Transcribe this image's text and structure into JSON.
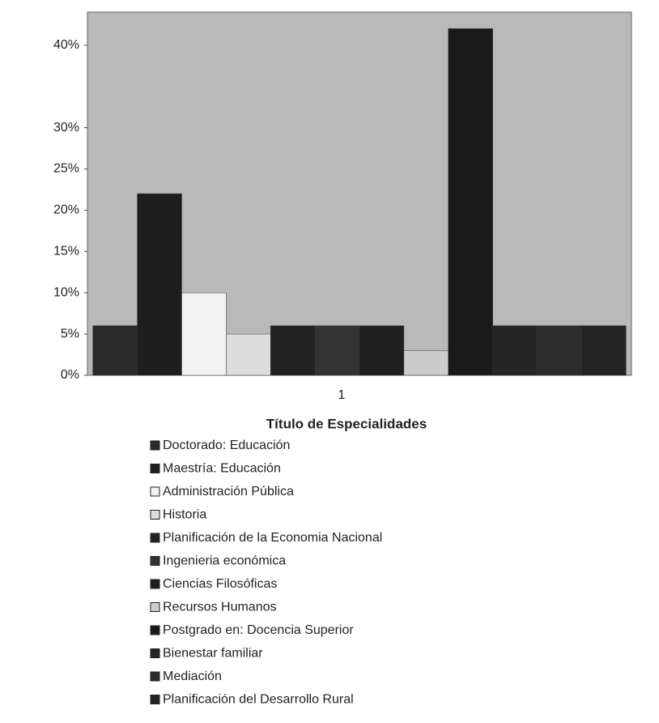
{
  "chart_data": {
    "type": "bar",
    "title": "Título de Especialidades",
    "categories": [
      "1"
    ],
    "ylim": [
      0,
      44
    ],
    "yticks": [
      {
        "value": 0,
        "label": "0%"
      },
      {
        "value": 5,
        "label": "5%"
      },
      {
        "value": 10,
        "label": "10%"
      },
      {
        "value": 15,
        "label": "15%"
      },
      {
        "value": 20,
        "label": "20%"
      },
      {
        "value": 25,
        "label": "25%"
      },
      {
        "value": 30,
        "label": "30%"
      },
      {
        "value": 40,
        "label": "40%"
      }
    ],
    "series": [
      {
        "name": "Doctorado: Educación",
        "color": "#2a2a2a",
        "values": [
          6
        ]
      },
      {
        "name": "Maestría: Educación",
        "color": "#1e1e1e",
        "values": [
          22
        ]
      },
      {
        "name": "Administración Pública",
        "color": "#f2f2f2",
        "values": [
          10
        ]
      },
      {
        "name": "Historia",
        "color": "#dddddd",
        "values": [
          5
        ]
      },
      {
        "name": "Planificación de la Economia Nacional",
        "color": "#222222",
        "values": [
          6
        ]
      },
      {
        "name": "Ingenieria económica",
        "color": "#333333",
        "values": [
          6
        ]
      },
      {
        "name": "Ciencias Filosóficas",
        "color": "#202020",
        "values": [
          6
        ]
      },
      {
        "name": "Recursos Humanos",
        "color": "#cccccc",
        "values": [
          3
        ]
      },
      {
        "name": "Postgrado en: Docencia Superior",
        "color": "#1a1a1a",
        "values": [
          42
        ]
      },
      {
        "name": "Bienestar familiar",
        "color": "#262626",
        "values": [
          6
        ]
      },
      {
        "name": "Mediación",
        "color": "#2c2c2c",
        "values": [
          6
        ]
      },
      {
        "name": "Planificación del Desarrollo Rural",
        "color": "#242424",
        "values": [
          6
        ]
      }
    ]
  }
}
